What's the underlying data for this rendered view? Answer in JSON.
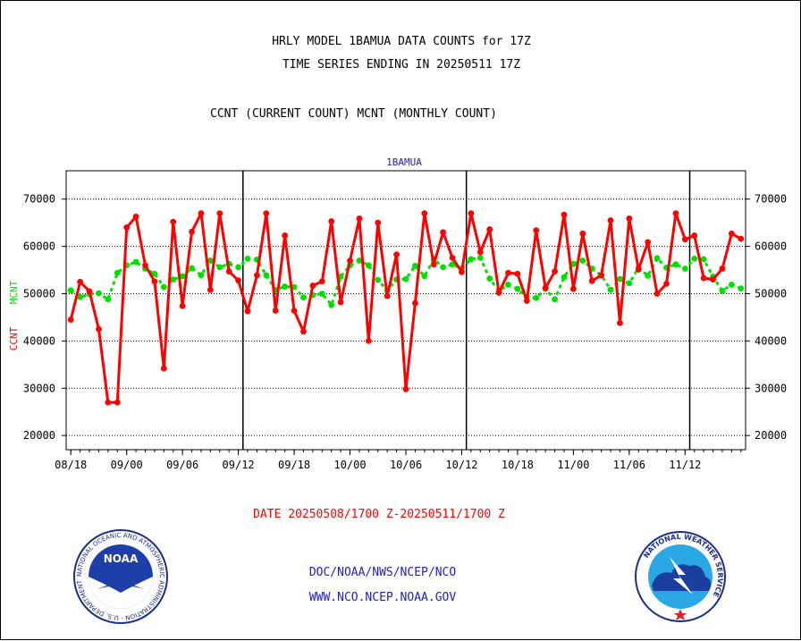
{
  "header": {
    "title_line1": "HRLY MODEL 1BAMUA DATA COUNTS for 17Z",
    "title_line2": "TIME SERIES ENDING IN 20250511 17Z",
    "subtitle": "CCNT (CURRENT COUNT) MCNT (MONTHLY COUNT)"
  },
  "chart_data": {
    "type": "line",
    "title": "1BAMUA",
    "ylabel_left": "CCNT",
    "ylabel_right": "MCNT",
    "xlabel": "DATE 20250508/1700 Z-20250511/1700 Z",
    "ylim": [
      17000,
      76000
    ],
    "yticks": [
      20000,
      30000,
      40000,
      50000,
      60000,
      70000
    ],
    "ytick_labels": [
      "20000",
      "30000",
      "40000",
      "50000",
      "60000",
      "70000"
    ],
    "xticks": [
      {
        "label": "08/18",
        "index": 0.5
      },
      {
        "label": "09/00",
        "index": 6.5
      },
      {
        "label": "09/06",
        "index": 12.5
      },
      {
        "label": "09/12",
        "index": 18.5
      },
      {
        "label": "09/18",
        "index": 24.5
      },
      {
        "label": "10/00",
        "index": 30.5
      },
      {
        "label": "10/06",
        "index": 36.5
      },
      {
        "label": "10/12",
        "index": 42.5
      },
      {
        "label": "10/18",
        "index": 48.5
      },
      {
        "label": "11/00",
        "index": 54.5
      },
      {
        "label": "11/06",
        "index": 60.5
      },
      {
        "label": "11/12",
        "index": 66.5
      }
    ],
    "day_boundaries": [
      19,
      43,
      67
    ],
    "grid": true,
    "series": [
      {
        "name": "CCNT",
        "color": "#ff0000",
        "style": "solid",
        "values": [
          44500,
          52500,
          50500,
          42500,
          27000,
          27000,
          64000,
          66300,
          56000,
          52600,
          34200,
          65200,
          47400,
          63100,
          67000,
          50800,
          67000,
          54700,
          52800,
          46300,
          53900,
          67000,
          46400,
          62300,
          46400,
          42000,
          51700,
          52600,
          65300,
          48200,
          57000,
          65900,
          40000,
          65000,
          49500,
          58300,
          29800,
          48000,
          67000,
          56200,
          63000,
          57600,
          54600,
          67000,
          58800,
          63600,
          50200,
          54400,
          54200,
          48500,
          63400,
          51200,
          54700,
          66700,
          51000,
          62700,
          52700,
          53900,
          65500,
          43800,
          65900,
          55100,
          60900,
          50000,
          52100,
          67000,
          61500,
          62300,
          53300,
          53000,
          55300,
          62700,
          61600
        ]
      },
      {
        "name": "MCNT",
        "color": "#00e000",
        "style": "dashed",
        "values": [
          50700,
          49300,
          49900,
          50100,
          48800,
          54400,
          56000,
          56700,
          55300,
          54200,
          51400,
          53000,
          53700,
          55400,
          53900,
          57000,
          55600,
          56300,
          55600,
          57400,
          57200,
          53900,
          50800,
          51500,
          51400,
          49200,
          49700,
          50000,
          47600,
          53600,
          56000,
          57000,
          56000,
          52900,
          50700,
          53000,
          53100,
          55900,
          53700,
          57300,
          55600,
          56200,
          55300,
          57300,
          57600,
          53200,
          50600,
          51900,
          51000,
          49300,
          49100,
          51000,
          48800,
          53500,
          56300,
          57000,
          55300,
          53900,
          50800,
          53100,
          52200,
          55500,
          53800,
          57500,
          55500,
          56200,
          55300,
          57400,
          57300,
          53600,
          50600,
          51900,
          51100
        ]
      }
    ]
  },
  "footer": {
    "line1": "DOC/NOAA/NWS/NCEP/NCO",
    "line2": "WWW.NCO.NCEP.NOAA.GOV",
    "noaa_logo_text": "NOAA",
    "noaa_ring_text": "NATIONAL OCEANIC AND ATMOSPHERIC ADMINISTRATION · U.S. DEPARTMENT OF COMMERCE",
    "nws_ring_text": "NATIONAL WEATHER SERVICE"
  },
  "colors": {
    "ccnt": "#ff0000",
    "mcnt": "#00e000",
    "title_blue": "#2020c0",
    "date_red": "#ff0000"
  }
}
